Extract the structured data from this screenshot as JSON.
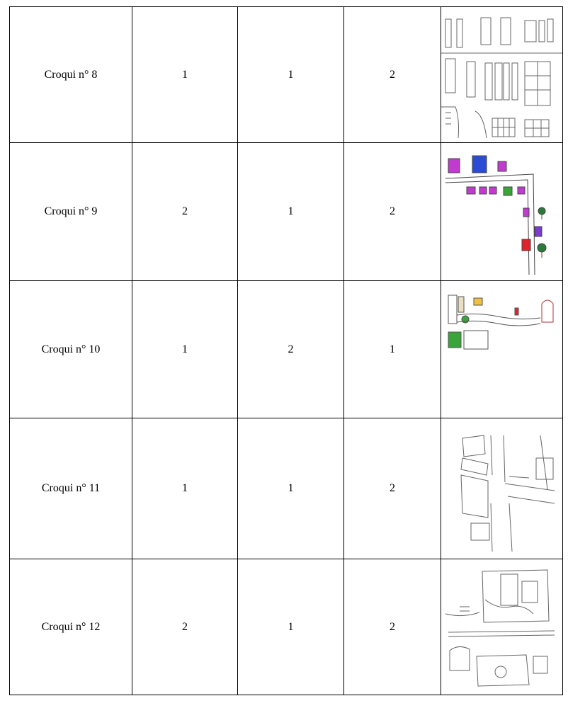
{
  "rows": [
    {
      "label": "Croqui n° 8",
      "c1": "1",
      "c2": "1",
      "c3": "2",
      "sketch": "street-grid-sketch"
    },
    {
      "label": "Croqui n° 9",
      "c1": "2",
      "c2": "1",
      "c3": "2",
      "sketch": "colored-buildings-sketch"
    },
    {
      "label": "Croqui n° 10",
      "c1": "1",
      "c2": "2",
      "c3": "1",
      "sketch": "winding-street-sketch"
    },
    {
      "label": "Croqui n° 11",
      "c1": "1",
      "c2": "1",
      "c3": "2",
      "sketch": "intersection-sketch"
    },
    {
      "label": "Croqui n° 12",
      "c1": "2",
      "c2": "1",
      "c3": "2",
      "sketch": "square-with-monuments-sketch"
    }
  ],
  "colors": {
    "border": "#000000",
    "magenta": "#c23bd0",
    "blue": "#2b4bd6",
    "green": "#3aa63a",
    "red": "#e0222a",
    "pencil": "#555555"
  }
}
